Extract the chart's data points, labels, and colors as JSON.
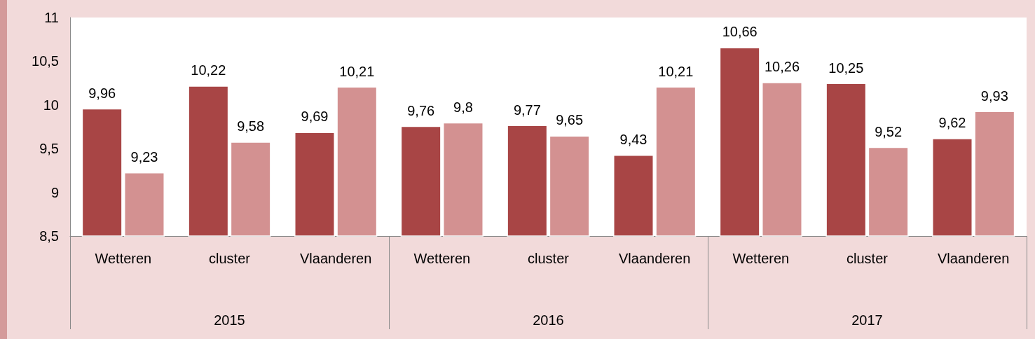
{
  "chart_data": {
    "type": "bar",
    "categories": [
      "Wetteren",
      "cluster",
      "Vlaanderen",
      "Wetteren",
      "cluster",
      "Vlaanderen",
      "Wetteren",
      "cluster",
      "Vlaanderen"
    ],
    "series": [
      {
        "color": "#a84545",
        "values": [
          9.96,
          10.22,
          9.69,
          9.76,
          9.77,
          9.43,
          10.66,
          10.25,
          9.62
        ],
        "value_labels": [
          "9,96",
          "10,22",
          "9,69",
          "9,76",
          "9,77",
          "9,43",
          "10,66",
          "10,25",
          "9,62"
        ]
      },
      {
        "color": "#d39191",
        "values": [
          9.23,
          9.58,
          10.21,
          9.8,
          9.65,
          10.21,
          10.26,
          9.52,
          9.93
        ],
        "value_labels": [
          "9,23",
          "9,58",
          "10,21",
          "9,8",
          "9,65",
          "10,21",
          "10,26",
          "9,52",
          "9,93"
        ]
      }
    ],
    "annotations": [
      "2015",
      "2016",
      "2017"
    ],
    "ylim": [
      8.5,
      11
    ],
    "yticks": [
      {
        "value": 8.5,
        "label": "8,5"
      },
      9,
      {
        "value": 9.5,
        "label": "9,5"
      },
      10,
      {
        "value": 10.5,
        "label": "10,5"
      },
      11
    ],
    "grid": false
  }
}
